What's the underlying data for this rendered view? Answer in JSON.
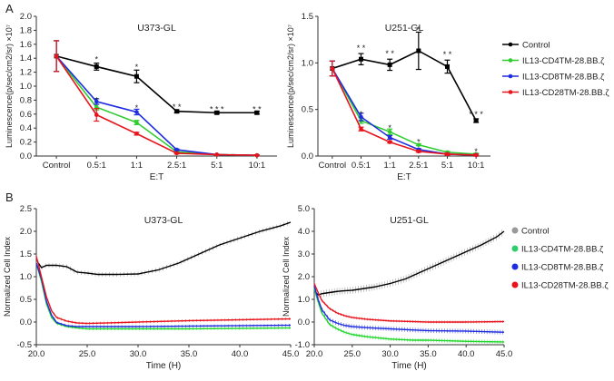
{
  "panel_labels": [
    "A",
    "B"
  ],
  "legend_a": {
    "entries": [
      {
        "label": "Control",
        "color": "#000000"
      },
      {
        "label": "IL13-CD4TM-28.BB.ζ",
        "color": "#2ecc2e"
      },
      {
        "label": "IL13-CD8TM-28.BB.ζ",
        "color": "#1f2de0"
      },
      {
        "label": "IL13-CD28TM-28.BB.ζ",
        "color": "#e8141c"
      }
    ]
  },
  "legend_b": {
    "entries": [
      {
        "label": "Control",
        "color": "#999999"
      },
      {
        "label": "IL13-CD4TM-28.BB.ζ",
        "color": "#2ecc6a"
      },
      {
        "label": "IL13-CD8TM-28.BB.ζ",
        "color": "#1f2de0"
      },
      {
        "label": "IL13-CD28TM-28.BB.ζ",
        "color": "#e8141c"
      }
    ]
  },
  "chart_data": [
    {
      "id": "a1",
      "type": "line",
      "title": "U373-GL",
      "xlabel": "E:T",
      "ylabel": "Luminescence(p/sec/cm2/sr) ×10⁷",
      "categories": [
        "Control",
        "0.5:1",
        "1:1",
        "2.5:1",
        "5:1",
        "10:1"
      ],
      "ylim": [
        0,
        2.0
      ],
      "yticks": [
        "0.0",
        "0.2",
        "0.4",
        "0.6",
        "0.8",
        "1.0",
        "1.2",
        "1.4",
        "1.6",
        "1.8",
        "2.0"
      ],
      "series": [
        {
          "name": "Control",
          "color": "#000000",
          "values": [
            1.43,
            1.28,
            1.14,
            0.64,
            0.62,
            0.62
          ],
          "errors": [
            0.22,
            0.05,
            0.09,
            0.02,
            0.02,
            0.02
          ]
        },
        {
          "name": "IL13-CD4TM-28.BB.ζ",
          "color": "#2ecc2e",
          "values": [
            1.43,
            0.7,
            0.48,
            0.06,
            0.02,
            0.01
          ],
          "errors": [
            0.22,
            0.04,
            0.03,
            0.01,
            0.005,
            0.005
          ]
        },
        {
          "name": "IL13-CD8TM-28.BB.ζ",
          "color": "#1f2de0",
          "values": [
            1.43,
            0.78,
            0.63,
            0.09,
            0.02,
            0.01
          ],
          "errors": [
            0.22,
            0.04,
            0.04,
            0.01,
            0.005,
            0.005
          ]
        },
        {
          "name": "IL13-CD28TM-28.BB.ζ",
          "color": "#e8141c",
          "values": [
            1.43,
            0.59,
            0.32,
            0.04,
            0.02,
            0.01
          ],
          "errors": [
            0.22,
            0.09,
            0.02,
            0.01,
            0.005,
            0.005
          ]
        }
      ],
      "annotations": [
        {
          "category": "0.5:1",
          "text": "*",
          "y": 1.38
        },
        {
          "category": "0.5:1",
          "text": "*",
          "y": 0.8
        },
        {
          "category": "1:1",
          "text": "*",
          "y": 1.27
        },
        {
          "category": "1:1",
          "text": "*",
          "y": 0.69
        },
        {
          "category": "2.5:1",
          "text": "* *",
          "y": 0.7
        },
        {
          "category": "5:1",
          "text": "* * *",
          "y": 0.67
        },
        {
          "category": "10:1",
          "text": "* *",
          "y": 0.67
        }
      ]
    },
    {
      "id": "a2",
      "type": "line",
      "title": "U251-GL",
      "xlabel": "E:T",
      "ylabel": "Luminescence(p/sec/cm2/sr) ×10⁷",
      "categories": [
        "Control",
        "0.5:1",
        "1:1",
        "2.5:1",
        "5:1",
        "10:1"
      ],
      "ylim": [
        0,
        1.5
      ],
      "yticks": [
        "0.0",
        "0.5",
        "1.0",
        "1.5"
      ],
      "series": [
        {
          "name": "Control",
          "color": "#000000",
          "values": [
            0.94,
            1.04,
            0.98,
            1.13,
            0.96,
            0.38
          ],
          "errors": [
            0.08,
            0.06,
            0.06,
            0.2,
            0.07,
            0.02
          ]
        },
        {
          "name": "IL13-CD4TM-28.BB.ζ",
          "color": "#2ecc2e",
          "values": [
            0.94,
            0.38,
            0.26,
            0.12,
            0.04,
            0.02
          ],
          "errors": [
            0.08,
            0.03,
            0.03,
            0.01,
            0.01,
            0.01
          ]
        },
        {
          "name": "IL13-CD8TM-28.BB.ζ",
          "color": "#1f2de0",
          "values": [
            0.94,
            0.42,
            0.2,
            0.07,
            0.02,
            0.01
          ],
          "errors": [
            0.08,
            0.04,
            0.02,
            0.01,
            0.01,
            0.01
          ]
        },
        {
          "name": "IL13-CD28TM-28.BB.ζ",
          "color": "#e8141c",
          "values": [
            0.94,
            0.29,
            0.15,
            0.05,
            0.02,
            0.01
          ],
          "errors": [
            0.08,
            0.02,
            0.01,
            0.01,
            0.01,
            0.01
          ]
        }
      ],
      "annotations": [
        {
          "category": "0.5:1",
          "text": "* *",
          "y": 1.16
        },
        {
          "category": "0.5:1",
          "text": "*",
          "y": 0.45
        },
        {
          "category": "1:1",
          "text": "* *",
          "y": 1.1
        },
        {
          "category": "1:1",
          "text": "*",
          "y": 0.3
        },
        {
          "category": "2.5:1",
          "text": "*",
          "y": 1.36
        },
        {
          "category": "2.5:1",
          "text": "*",
          "y": 0.15
        },
        {
          "category": "5:1",
          "text": "* *",
          "y": 1.09
        },
        {
          "category": "10:1",
          "text": "* * *",
          "y": 0.45
        },
        {
          "category": "10:1",
          "text": "*",
          "y": 0.05
        }
      ]
    },
    {
      "id": "b1",
      "type": "line",
      "title": "U373-GL",
      "xlabel": "Time (H)",
      "ylabel": "Normalized Cell Index",
      "xlim": [
        20,
        45
      ],
      "xticks": [
        "20.0",
        "25.0",
        "30.0",
        "35.0",
        "40.0",
        "45.0"
      ],
      "ylim": [
        -0.5,
        2.5
      ],
      "yticks": [
        "-0.5",
        "0.0",
        "0.5",
        "1.0",
        "1.5",
        "2.0",
        "2.5"
      ],
      "series": [
        {
          "name": "Control",
          "color": "#000000",
          "errColor": "#888888",
          "err": 0.05,
          "x": [
            20.2,
            20.5,
            21,
            22,
            23,
            24,
            25,
            26,
            28,
            30,
            32,
            34,
            36,
            38,
            40,
            42,
            44,
            45
          ],
          "values": [
            1.3,
            1.2,
            1.25,
            1.25,
            1.22,
            1.1,
            1.08,
            1.05,
            1.05,
            1.06,
            1.15,
            1.3,
            1.5,
            1.7,
            1.85,
            2.0,
            2.12,
            2.2
          ]
        },
        {
          "name": "IL13-CD4TM-28.BB.ζ",
          "color": "#1fd62a",
          "errColor": "#1fd62a",
          "err": 0.03,
          "x": [
            20.0,
            20.5,
            21,
            21.5,
            22,
            23,
            24,
            25,
            27,
            30,
            35,
            40,
            45
          ],
          "values": [
            1.3,
            0.9,
            0.4,
            0.1,
            -0.03,
            -0.1,
            -0.13,
            -0.15,
            -0.15,
            -0.15,
            -0.15,
            -0.14,
            -0.13
          ]
        },
        {
          "name": "IL13-CD8TM-28.BB.ζ",
          "color": "#1f2de0",
          "errColor": "#1f2de0",
          "err": 0.03,
          "x": [
            20.0,
            20.5,
            21,
            21.5,
            22,
            23,
            24,
            25,
            27,
            30,
            35,
            40,
            45
          ],
          "values": [
            1.3,
            0.95,
            0.45,
            0.15,
            -0.01,
            -0.08,
            -0.1,
            -0.1,
            -0.1,
            -0.1,
            -0.09,
            -0.08,
            -0.07
          ]
        },
        {
          "name": "IL13-CD28TM-28.BB.ζ",
          "color": "#e8141c",
          "errColor": "#e8141c",
          "err": 0.03,
          "x": [
            20.0,
            20.5,
            21,
            21.5,
            22,
            23,
            24,
            25,
            27,
            30,
            35,
            40,
            45
          ],
          "values": [
            1.45,
            1.0,
            0.55,
            0.25,
            0.1,
            0.02,
            -0.02,
            -0.03,
            -0.02,
            0.0,
            0.03,
            0.05,
            0.07
          ]
        }
      ]
    },
    {
      "id": "b2",
      "type": "line",
      "title": "U251-GL",
      "xlabel": "Time (H)",
      "ylabel": "Normalized Cell Index",
      "xlim": [
        20,
        45
      ],
      "xticks": [
        "20.0",
        "25.0",
        "30.0",
        "35.0",
        "40.0",
        "45.0"
      ],
      "ylim": [
        -1.0,
        5.0
      ],
      "yticks": [
        "-1.0",
        "0.0",
        "1.0",
        "2.0",
        "3.0",
        "4.0",
        "5.0"
      ],
      "series": [
        {
          "name": "Control",
          "color": "#000000",
          "errColor": "#888888",
          "err": 0.15,
          "x": [
            20.2,
            20.5,
            21,
            22,
            23,
            24,
            25,
            26,
            28,
            30,
            32,
            34,
            36,
            38,
            40,
            42,
            44,
            45
          ],
          "values": [
            1.3,
            1.2,
            1.25,
            1.3,
            1.35,
            1.38,
            1.4,
            1.45,
            1.55,
            1.7,
            1.9,
            2.2,
            2.5,
            2.8,
            3.1,
            3.4,
            3.75,
            4.0
          ]
        },
        {
          "name": "IL13-CD4TM-28.BB.ζ",
          "color": "#1fd62a",
          "errColor": "#1fd62a",
          "err": 0.08,
          "x": [
            20.0,
            20.5,
            21,
            22,
            23,
            24,
            25,
            27,
            30,
            33,
            35,
            40,
            45
          ],
          "values": [
            1.5,
            0.9,
            0.4,
            -0.1,
            -0.3,
            -0.45,
            -0.55,
            -0.65,
            -0.75,
            -0.8,
            -0.8,
            -0.85,
            -0.88
          ]
        },
        {
          "name": "IL13-CD8TM-28.BB.ζ",
          "color": "#1f2de0",
          "errColor": "#1f2de0",
          "err": 0.1,
          "x": [
            20.0,
            20.5,
            21,
            22,
            23,
            24,
            25,
            27,
            30,
            33,
            35,
            40,
            45
          ],
          "values": [
            1.6,
            1.0,
            0.55,
            0.1,
            -0.05,
            -0.15,
            -0.2,
            -0.25,
            -0.3,
            -0.35,
            -0.38,
            -0.4,
            -0.45
          ]
        },
        {
          "name": "IL13-CD28TM-28.BB.ζ",
          "color": "#e8141c",
          "errColor": "#e8141c",
          "err": 0.06,
          "x": [
            20.0,
            20.5,
            21,
            22,
            23,
            24,
            25,
            27,
            30,
            33,
            35,
            40,
            45
          ],
          "values": [
            1.7,
            1.3,
            0.95,
            0.6,
            0.4,
            0.28,
            0.2,
            0.12,
            0.05,
            0.02,
            0.0,
            0.0,
            0.02
          ]
        }
      ]
    }
  ]
}
